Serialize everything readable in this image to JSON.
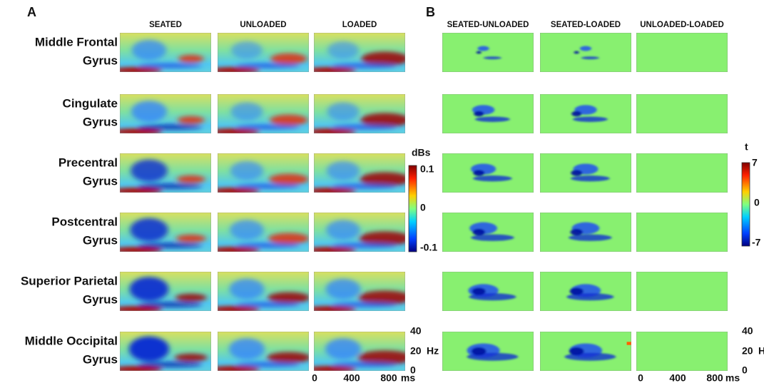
{
  "panel_a": {
    "label": "A",
    "columns": [
      "SEATED",
      "UNLOADED",
      "LOADED"
    ],
    "colorbar": {
      "unit": "dBs",
      "ticks": [
        "0.1",
        "0",
        "-0.1"
      ]
    }
  },
  "panel_b": {
    "label": "B",
    "columns": [
      "SEATED-UNLOADED",
      "SEATED-LOADED",
      "UNLOADED-LOADED"
    ],
    "colorbar": {
      "unit": "t",
      "ticks": [
        "7",
        "0",
        "-7"
      ]
    }
  },
  "rows": [
    [
      "Middle Frontal",
      "Gyrus"
    ],
    [
      "Cingulate",
      "Gyrus"
    ],
    [
      "Precentral",
      "Gyrus"
    ],
    [
      "Postcentral",
      "Gyrus"
    ],
    [
      "Superior Parietal",
      "Gyrus"
    ],
    [
      "Middle Occipital",
      "Gyrus"
    ]
  ],
  "axes": {
    "y_ticks": [
      "40",
      "20",
      "0"
    ],
    "y_unit": "Hz",
    "x_ticks": [
      "0",
      "400",
      "800"
    ],
    "x_unit": "ms"
  }
}
